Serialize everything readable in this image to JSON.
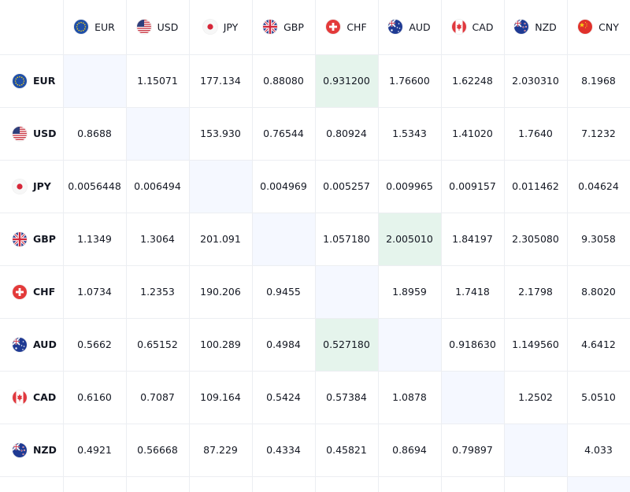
{
  "currencies": [
    "EUR",
    "USD",
    "JPY",
    "GBP",
    "CHF",
    "AUD",
    "CAD",
    "NZD",
    "CNY"
  ],
  "rows": [
    {
      "code": "EUR",
      "values": [
        "",
        "1.15071",
        "177.134",
        "0.88080",
        "0.931200",
        "1.76600",
        "1.62248",
        "2.030310",
        "8.1968"
      ]
    },
    {
      "code": "USD",
      "values": [
        "0.8688",
        "",
        "153.930",
        "0.76544",
        "0.80924",
        "1.5343",
        "1.41020",
        "1.7640",
        "7.1232"
      ]
    },
    {
      "code": "JPY",
      "values": [
        "0.0056448",
        "0.006494",
        "",
        "0.004969",
        "0.005257",
        "0.009965",
        "0.009157",
        "0.011462",
        "0.04624"
      ]
    },
    {
      "code": "GBP",
      "values": [
        "1.1349",
        "1.3064",
        "201.091",
        "",
        "1.057180",
        "2.005010",
        "1.84197",
        "2.305080",
        "9.3058"
      ]
    },
    {
      "code": "CHF",
      "values": [
        "1.0734",
        "1.2353",
        "190.206",
        "0.9455",
        "",
        "1.8959",
        "1.7418",
        "2.1798",
        "8.8020"
      ]
    },
    {
      "code": "AUD",
      "values": [
        "0.5662",
        "0.65152",
        "100.289",
        "0.4984",
        "0.527180",
        "",
        "0.918630",
        "1.149560",
        "4.6412"
      ]
    },
    {
      "code": "CAD",
      "values": [
        "0.6160",
        "0.7087",
        "109.164",
        "0.5424",
        "0.57384",
        "1.0878",
        "",
        "1.2502",
        "5.0510"
      ]
    },
    {
      "code": "NZD",
      "values": [
        "0.4921",
        "0.56668",
        "87.229",
        "0.4334",
        "0.45821",
        "0.8694",
        "0.79897",
        "",
        "4.033"
      ]
    }
  ],
  "highlighted_cells": [
    {
      "row": "EUR",
      "col": "CHF"
    },
    {
      "row": "GBP",
      "col": "AUD"
    },
    {
      "row": "AUD",
      "col": "CHF"
    }
  ],
  "colors": {
    "diagonal": "#f5f8ff",
    "highlight": "#e5f4ec",
    "grid": "#eceef2",
    "text": "#131722"
  },
  "flag_icons": {
    "EUR": "eu-flag-icon",
    "USD": "us-flag-icon",
    "JPY": "jp-flag-icon",
    "GBP": "gb-flag-icon",
    "CHF": "ch-flag-icon",
    "AUD": "au-flag-icon",
    "CAD": "ca-flag-icon",
    "NZD": "nz-flag-icon",
    "CNY": "cn-flag-icon"
  }
}
